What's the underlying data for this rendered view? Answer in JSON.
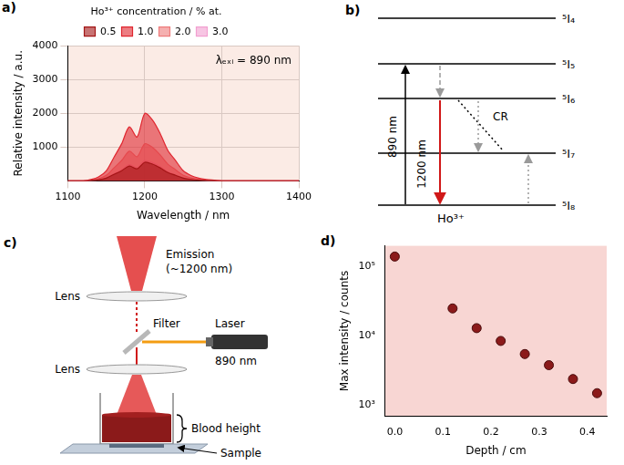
{
  "chart_data": [
    {
      "panel_label": "a)",
      "type": "line",
      "annotation": "λₑₓᵢ = 890 nm",
      "x_label": "Wavelength / nm",
      "y_label": "Relative intensity / a.u.",
      "legend_title": "Ho³⁺ concentration / % at.",
      "legend": "top",
      "grid": true,
      "x": [
        1100,
        1110,
        1120,
        1130,
        1140,
        1150,
        1160,
        1170,
        1180,
        1190,
        1200,
        1210,
        1220,
        1230,
        1240,
        1250,
        1260,
        1270,
        1280,
        1290,
        1300,
        1310,
        1320,
        1330,
        1340,
        1350,
        1360,
        1370,
        1380,
        1390,
        1400
      ],
      "series": [
        {
          "name": "0.5",
          "color": "#a31515",
          "values": [
            0,
            0,
            0,
            11,
            33,
            83,
            193,
            303,
            440,
            358,
            550,
            495,
            385,
            248,
            165,
            83,
            44,
            22,
            11,
            6,
            0,
            0,
            0,
            0,
            0,
            0,
            0,
            0,
            0,
            0,
            0
          ]
        },
        {
          "name": "1.0",
          "color": "#e0262f",
          "values": [
            0,
            0,
            0,
            40,
            120,
            300,
            700,
            1100,
            1600,
            1300,
            2000,
            1800,
            1400,
            900,
            600,
            300,
            160,
            80,
            40,
            20,
            0,
            0,
            0,
            0,
            0,
            0,
            0,
            0,
            0,
            0,
            0
          ]
        },
        {
          "name": "2.0",
          "color": "#ee7b7b",
          "values": [
            0,
            0,
            0,
            22,
            66,
            165,
            385,
            605,
            880,
            715,
            1100,
            990,
            770,
            495,
            330,
            165,
            88,
            44,
            22,
            11,
            0,
            0,
            0,
            0,
            0,
            0,
            0,
            0,
            0,
            0,
            0
          ]
        },
        {
          "name": "3.0",
          "color": "#f29fd0",
          "values": [
            0,
            0,
            0,
            12,
            36,
            90,
            210,
            330,
            480,
            390,
            600,
            540,
            420,
            270,
            180,
            90,
            48,
            24,
            12,
            6,
            0,
            0,
            0,
            0,
            0,
            0,
            0,
            0,
            0,
            0,
            0
          ]
        }
      ],
      "xlim": [
        1100,
        1400
      ],
      "xticks": [
        1100,
        1200,
        1300,
        1400
      ],
      "ylim": [
        0,
        4000
      ],
      "yticks": [
        1000,
        2000,
        3000,
        4000
      ]
    },
    {
      "panel_label": "d)",
      "type": "scatter",
      "x_label": "Depth / cm",
      "y_label": "Max intensity / counts",
      "x": [
        0,
        0.12,
        0.17,
        0.22,
        0.27,
        0.32,
        0.37,
        0.42
      ],
      "values": [
        140000,
        25000,
        13000,
        8500,
        5500,
        3800,
        2400,
        1500
      ],
      "color": "#8b1a1a",
      "marker": "circle",
      "log": "y",
      "grid": false,
      "xlim": [
        -0.02,
        0.44
      ],
      "xticks": [
        {
          "value": 0,
          "label": "0.0"
        },
        0.1,
        0.2,
        0.3,
        0.4
      ],
      "ylim": [
        700,
        200000
      ],
      "yticks": [
        {
          "value": 1000,
          "label": "10³"
        },
        {
          "value": 10000,
          "label": "10⁴"
        },
        {
          "value": 100000,
          "label": "10⁵"
        }
      ]
    }
  ],
  "energy_level_diagram": {
    "panel_label": "b)",
    "levels": [
      "⁵I₄",
      "⁵I₅",
      "⁵I₆",
      "⁵I₇",
      "⁵I₈"
    ],
    "excitation": "890 nm",
    "emission": "1200 nm",
    "cross_relaxation": "CR",
    "ion": "Ho³⁺"
  },
  "setup_diagram": {
    "panel_label": "c)",
    "emission": "Emission",
    "emission_wavelength": "(~1200 nm)",
    "lenses": [
      "Lens",
      "Lens"
    ],
    "filter": "Filter",
    "laser": "Laser",
    "laser_wavelength": "890 nm",
    "blood_height": "Blood height",
    "sample": "Sample"
  }
}
